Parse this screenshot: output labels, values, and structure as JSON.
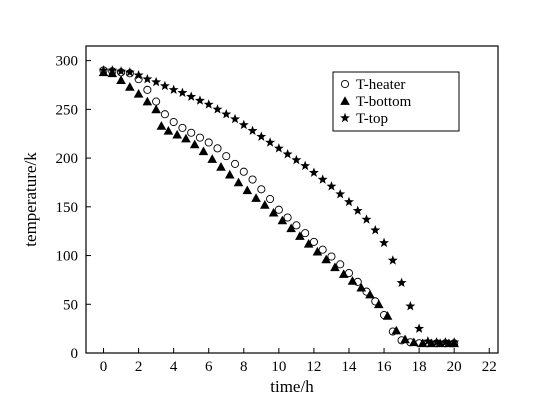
{
  "chart_data": {
    "type": "scatter",
    "xlabel": "time/h",
    "ylabel": "temperature/k",
    "xlim": [
      -1,
      22.5
    ],
    "ylim": [
      0,
      315
    ],
    "xticks": [
      0,
      2,
      4,
      6,
      8,
      10,
      12,
      14,
      16,
      18,
      20,
      22
    ],
    "yticks": [
      0,
      50,
      100,
      150,
      200,
      250,
      300
    ],
    "tick_labels_x": [
      "0",
      "2",
      "4",
      "6",
      "8",
      "10",
      "12",
      "14",
      "16",
      "18",
      "20",
      "22"
    ],
    "tick_labels_y": [
      "0",
      "50",
      "100",
      "150",
      "200",
      "250",
      "300"
    ],
    "grid": false,
    "legend_position": "top-right",
    "series": [
      {
        "name": "T-heater",
        "marker": "circle-open",
        "points": [
          [
            0,
            290
          ],
          [
            0.5,
            289
          ],
          [
            1,
            288
          ],
          [
            1.5,
            287
          ],
          [
            2,
            281
          ],
          [
            2.5,
            270
          ],
          [
            3,
            258
          ],
          [
            3.5,
            245
          ],
          [
            4,
            237
          ],
          [
            4.5,
            231
          ],
          [
            5,
            226
          ],
          [
            5.5,
            221
          ],
          [
            6,
            216
          ],
          [
            6.5,
            210
          ],
          [
            7,
            202
          ],
          [
            7.5,
            194
          ],
          [
            8,
            186
          ],
          [
            8.5,
            178
          ],
          [
            9,
            168
          ],
          [
            9.5,
            158
          ],
          [
            10,
            147
          ],
          [
            10.5,
            139
          ],
          [
            11,
            131
          ],
          [
            11.5,
            123
          ],
          [
            12,
            114
          ],
          [
            12.5,
            106
          ],
          [
            13,
            99
          ],
          [
            13.5,
            91
          ],
          [
            14,
            82
          ],
          [
            14.5,
            73
          ],
          [
            15,
            63
          ],
          [
            15.5,
            53
          ],
          [
            16,
            39
          ],
          [
            16.5,
            22
          ],
          [
            17,
            13
          ],
          [
            17.5,
            11
          ],
          [
            18,
            10
          ],
          [
            18.5,
            10
          ],
          [
            19,
            10
          ],
          [
            19.5,
            10
          ],
          [
            20,
            10
          ]
        ]
      },
      {
        "name": "T-bottom",
        "marker": "triangle-filled",
        "points": [
          [
            0,
            288
          ],
          [
            0.5,
            287
          ],
          [
            1,
            280
          ],
          [
            1.5,
            273
          ],
          [
            2,
            266
          ],
          [
            2.5,
            258
          ],
          [
            3,
            250
          ],
          [
            3.3,
            233
          ],
          [
            3.7,
            228
          ],
          [
            4.2,
            224
          ],
          [
            4.7,
            220
          ],
          [
            5.2,
            214
          ],
          [
            5.7,
            207
          ],
          [
            6.2,
            199
          ],
          [
            6.7,
            191
          ],
          [
            7.2,
            183
          ],
          [
            7.7,
            175
          ],
          [
            8.2,
            167
          ],
          [
            8.7,
            159
          ],
          [
            9.2,
            152
          ],
          [
            9.7,
            144
          ],
          [
            10.2,
            136
          ],
          [
            10.7,
            128
          ],
          [
            11.2,
            120
          ],
          [
            11.7,
            112
          ],
          [
            12.2,
            104
          ],
          [
            12.7,
            96
          ],
          [
            13.2,
            88
          ],
          [
            13.7,
            81
          ],
          [
            14.2,
            74
          ],
          [
            14.7,
            67
          ],
          [
            15.2,
            60
          ],
          [
            15.7,
            50
          ],
          [
            16.2,
            38
          ],
          [
            16.7,
            23
          ],
          [
            17.2,
            14
          ],
          [
            17.7,
            11
          ],
          [
            18.2,
            10
          ],
          [
            18.7,
            10
          ],
          [
            19.2,
            10
          ],
          [
            19.7,
            10
          ],
          [
            20,
            10
          ]
        ]
      },
      {
        "name": "T-top",
        "marker": "star-filled",
        "points": [
          [
            0,
            290
          ],
          [
            0.5,
            290
          ],
          [
            1,
            289
          ],
          [
            1.5,
            288
          ],
          [
            2,
            285
          ],
          [
            2.5,
            281
          ],
          [
            3,
            278
          ],
          [
            3.5,
            274
          ],
          [
            4,
            270
          ],
          [
            4.5,
            267
          ],
          [
            5,
            263
          ],
          [
            5.5,
            259
          ],
          [
            6,
            255
          ],
          [
            6.5,
            250
          ],
          [
            7,
            245
          ],
          [
            7.5,
            240
          ],
          [
            8,
            234
          ],
          [
            8.5,
            228
          ],
          [
            9,
            222
          ],
          [
            9.5,
            216
          ],
          [
            10,
            210
          ],
          [
            10.5,
            204
          ],
          [
            11,
            198
          ],
          [
            11.5,
            192
          ],
          [
            12,
            185
          ],
          [
            12.5,
            178
          ],
          [
            13,
            171
          ],
          [
            13.5,
            163
          ],
          [
            14,
            155
          ],
          [
            14.5,
            146
          ],
          [
            15,
            137
          ],
          [
            15.5,
            126
          ],
          [
            16,
            113
          ],
          [
            16.5,
            95
          ],
          [
            17,
            72
          ],
          [
            17.5,
            48
          ],
          [
            18,
            25
          ],
          [
            18.5,
            12
          ],
          [
            19,
            11
          ],
          [
            19.5,
            11
          ],
          [
            20,
            11
          ]
        ]
      }
    ]
  }
}
